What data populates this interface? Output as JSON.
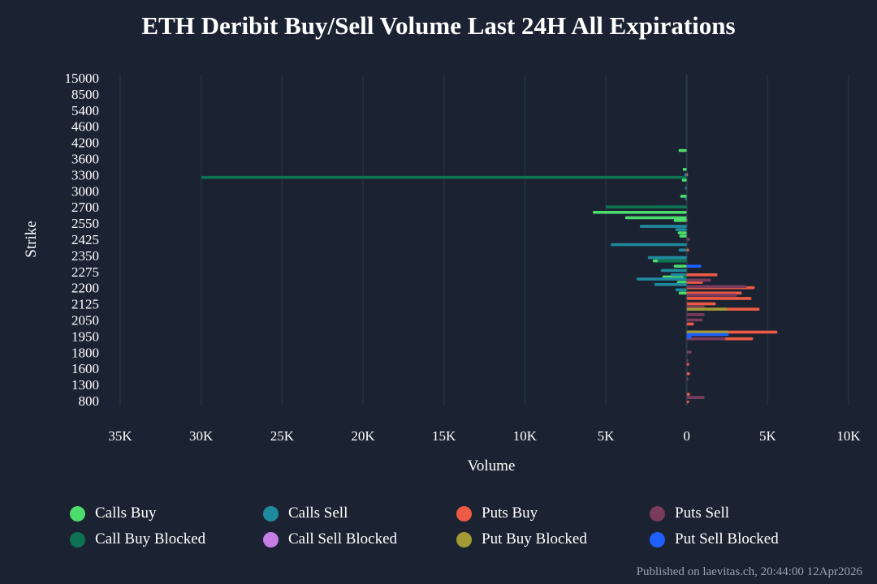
{
  "chart_data": {
    "type": "bar",
    "orientation": "horizontal",
    "title": "ETH Deribit Buy/Sell Volume Last 24H All Expirations",
    "xlabel": "Volume",
    "ylabel": "Strike",
    "xlim": [
      -35000,
      10000
    ],
    "x_ticks": [
      -35000,
      -30000,
      -25000,
      -20000,
      -15000,
      -10000,
      -5000,
      0,
      5000,
      10000
    ],
    "x_tick_labels": [
      "35K",
      "30K",
      "25K",
      "20K",
      "15K",
      "10K",
      "5K",
      "0",
      "5K",
      "10K"
    ],
    "y_tick_labels": [
      "15000",
      "8500",
      "5400",
      "4600",
      "4200",
      "3600",
      "3300",
      "3000",
      "2700",
      "2550",
      "2425",
      "2350",
      "2275",
      "2200",
      "2125",
      "2050",
      "1950",
      "1800",
      "1600",
      "1300",
      "800"
    ],
    "y_tick_values": [
      15000,
      8500,
      5400,
      4600,
      4200,
      3600,
      3300,
      3000,
      2700,
      2550,
      2425,
      2350,
      2275,
      2200,
      2125,
      2050,
      1950,
      1800,
      1600,
      1300,
      800
    ],
    "legend": [
      "Calls Buy",
      "Calls Sell",
      "Puts Buy",
      "Puts Sell",
      "Call Buy Blocked",
      "Call Sell Blocked",
      "Put Buy Blocked",
      "Put Sell Blocked"
    ],
    "series": [
      {
        "name": "Calls Buy",
        "color": "#4cdc6c",
        "points": [
          {
            "strike": 3900,
            "value": -500
          },
          {
            "strike": 3400,
            "value": -250
          },
          {
            "strike": 3200,
            "value": -300
          },
          {
            "strike": 2900,
            "value": -400
          },
          {
            "strike": 2650,
            "value": -5800
          },
          {
            "strike": 2600,
            "value": -3800
          },
          {
            "strike": 2575,
            "value": -800
          },
          {
            "strike": 2475,
            "value": -550
          },
          {
            "strike": 2450,
            "value": -450
          },
          {
            "strike": 2325,
            "value": -2100
          },
          {
            "strike": 2300,
            "value": -800
          },
          {
            "strike": 2250,
            "value": -1500
          },
          {
            "strike": 2225,
            "value": -600
          },
          {
            "strike": 2175,
            "value": -500
          }
        ]
      },
      {
        "name": "Calls Sell",
        "color": "#1f8a9e",
        "points": [
          {
            "strike": 3300,
            "value": -150
          },
          {
            "strike": 3050,
            "value": -100
          },
          {
            "strike": 2850,
            "value": -100
          },
          {
            "strike": 2700,
            "value": -1900
          },
          {
            "strike": 2525,
            "value": -2900
          },
          {
            "strike": 2500,
            "value": -700
          },
          {
            "strike": 2400,
            "value": -4700
          },
          {
            "strike": 2375,
            "value": -500
          },
          {
            "strike": 2340,
            "value": -2400
          },
          {
            "strike": 2280,
            "value": -1600
          },
          {
            "strike": 2260,
            "value": -1000
          },
          {
            "strike": 2240,
            "value": -3100
          },
          {
            "strike": 2215,
            "value": -2000
          },
          {
            "strike": 2190,
            "value": -700
          }
        ]
      },
      {
        "name": "Puts Buy",
        "color": "#ee5a44",
        "points": [
          {
            "strike": 3300,
            "value": 80
          },
          {
            "strike": 2375,
            "value": 150
          },
          {
            "strike": 2260,
            "value": 1900
          },
          {
            "strike": 2225,
            "value": 1000
          },
          {
            "strike": 2200,
            "value": 4200
          },
          {
            "strike": 2175,
            "value": 3400
          },
          {
            "strike": 2150,
            "value": 4000
          },
          {
            "strike": 2125,
            "value": 1800
          },
          {
            "strike": 2100,
            "value": 4500
          },
          {
            "strike": 2025,
            "value": 450
          },
          {
            "strike": 1975,
            "value": 5600
          },
          {
            "strike": 1925,
            "value": 4100
          },
          {
            "strike": 1650,
            "value": 150
          },
          {
            "strike": 1500,
            "value": 200
          },
          {
            "strike": 1000,
            "value": 200
          },
          {
            "strike": 700,
            "value": 150
          }
        ]
      },
      {
        "name": "Puts Sell",
        "color": "#7a3b5c",
        "points": [
          {
            "strike": 2575,
            "value": 80
          },
          {
            "strike": 2425,
            "value": 200
          },
          {
            "strike": 2300,
            "value": 150
          },
          {
            "strike": 2235,
            "value": 1500
          },
          {
            "strike": 2205,
            "value": 3700
          },
          {
            "strike": 2165,
            "value": 3100
          },
          {
            "strike": 2110,
            "value": 1100
          },
          {
            "strike": 2075,
            "value": 1100
          },
          {
            "strike": 2050,
            "value": 1000
          },
          {
            "strike": 1925,
            "value": 2400
          },
          {
            "strike": 1800,
            "value": 300
          },
          {
            "strike": 1700,
            "value": 100
          },
          {
            "strike": 1400,
            "value": 100
          },
          {
            "strike": 900,
            "value": 1100
          }
        ]
      },
      {
        "name": "Call Buy Blocked",
        "color": "#0e7352",
        "points": [
          {
            "strike": 3250,
            "value": -30000
          },
          {
            "strike": 2700,
            "value": -5000
          },
          {
            "strike": 2325,
            "value": -1800
          },
          {
            "strike": 2250,
            "value": -200
          }
        ]
      },
      {
        "name": "Call Sell Blocked",
        "color": "#c67ee6",
        "points": []
      },
      {
        "name": "Put Buy Blocked",
        "color": "#a39a34",
        "points": [
          {
            "strike": 2100,
            "value": 2500
          },
          {
            "strike": 1975,
            "value": 2600
          }
        ]
      },
      {
        "name": "Put Sell Blocked",
        "color": "#1d5fff",
        "points": [
          {
            "strike": 2300,
            "value": 900
          },
          {
            "strike": 1960,
            "value": 2600
          },
          {
            "strike": 1940,
            "value": 300
          }
        ]
      }
    ]
  },
  "footer": "Published on laevitas.ch, 20:44:00 12Apr2026"
}
